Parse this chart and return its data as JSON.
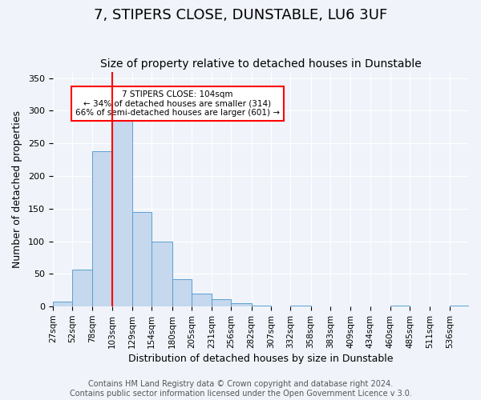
{
  "title": "7, STIPERS CLOSE, DUNSTABLE, LU6 3UF",
  "subtitle": "Size of property relative to detached houses in Dunstable",
  "xlabel": "Distribution of detached houses by size in Dunstable",
  "ylabel": "Number of detached properties",
  "bar_values": [
    8,
    57,
    238,
    292,
    145,
    100,
    42,
    20,
    11,
    5,
    2,
    0,
    2,
    0,
    0,
    0,
    0,
    2,
    0,
    0,
    2
  ],
  "bin_labels": [
    "27sqm",
    "52sqm",
    "78sqm",
    "103sqm",
    "129sqm",
    "154sqm",
    "180sqm",
    "205sqm",
    "231sqm",
    "256sqm",
    "282sqm",
    "307sqm",
    "332sqm",
    "358sqm",
    "383sqm",
    "409sqm",
    "434sqm",
    "460sqm",
    "485sqm",
    "511sqm",
    "536sqm"
  ],
  "bar_color": "#c5d8ed",
  "bar_edge_color": "#5a9fd4",
  "bin_edges": [
    27,
    52,
    78,
    103,
    129,
    154,
    180,
    205,
    231,
    256,
    282,
    307,
    332,
    358,
    383,
    409,
    434,
    460,
    485,
    511,
    536,
    561
  ],
  "ylim": [
    0,
    360
  ],
  "yticks": [
    0,
    50,
    100,
    150,
    200,
    250,
    300,
    350
  ],
  "property_line_x": 103,
  "annotation_title": "7 STIPERS CLOSE: 104sqm",
  "annotation_line1": "← 34% of detached houses are smaller (314)",
  "annotation_line2": "66% of semi-detached houses are larger (601) →",
  "annotation_box_color": "white",
  "annotation_box_edge_color": "red",
  "footer_line1": "Contains HM Land Registry data © Crown copyright and database right 2024.",
  "footer_line2": "Contains public sector information licensed under the Open Government Licence v 3.0.",
  "background_color": "#f0f4fa",
  "grid_color": "white",
  "title_fontsize": 13,
  "subtitle_fontsize": 10,
  "axis_fontsize": 9,
  "tick_fontsize": 8,
  "footer_fontsize": 7
}
